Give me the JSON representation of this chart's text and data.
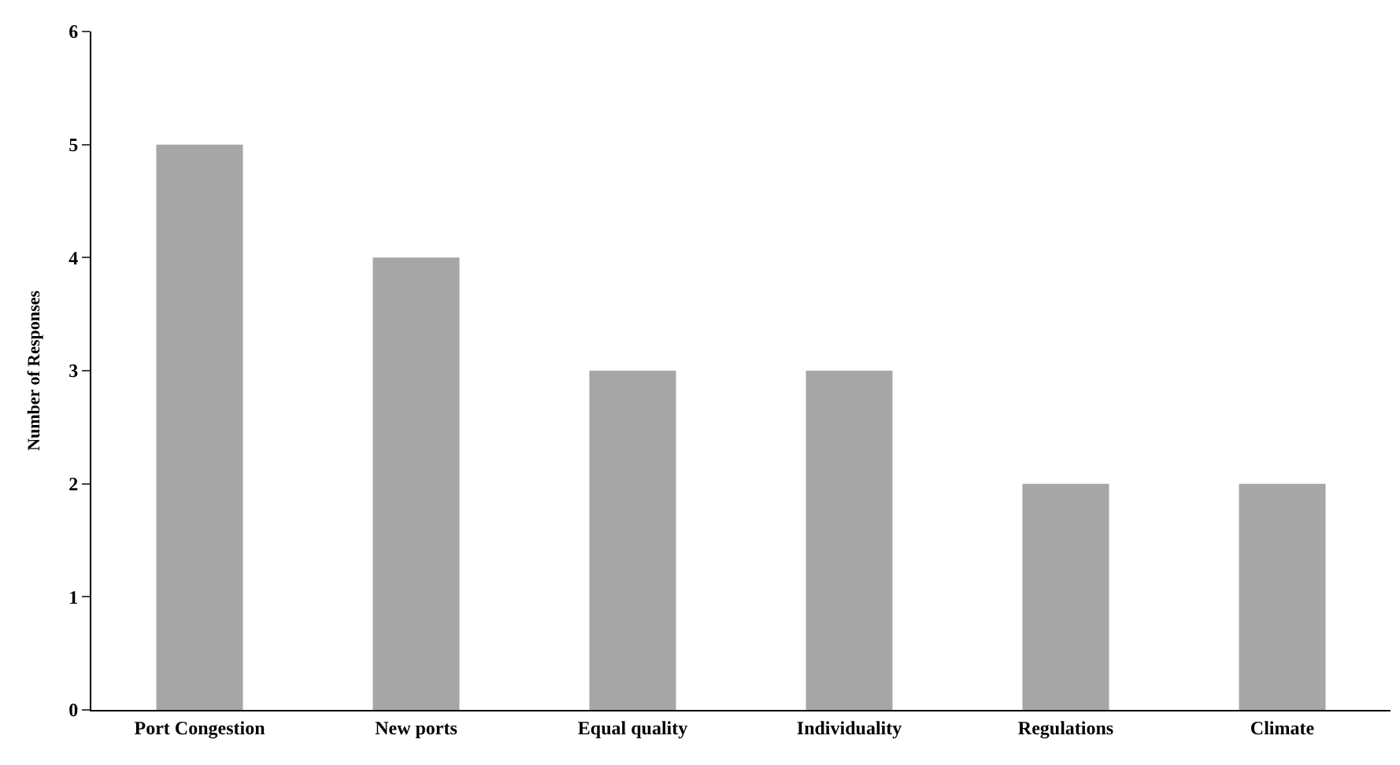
{
  "chart_data": {
    "type": "bar",
    "categories": [
      "Port Congestion",
      "New ports",
      "Equal quality",
      "Individuality",
      "Regulations",
      "Climate"
    ],
    "values": [
      5,
      4,
      3,
      3,
      2,
      2
    ],
    "color": "#a6a6a6",
    "ylabel": "Number of Responses",
    "ylim": [
      0,
      6
    ],
    "yticks": [
      0,
      1,
      2,
      3,
      4,
      5,
      6
    ]
  }
}
